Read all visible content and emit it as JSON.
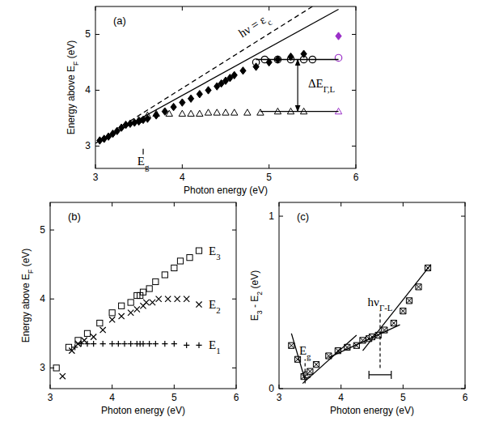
{
  "chart_data": [
    {
      "type": "scatter",
      "title": "(a)",
      "x_label": "Photon energy (eV)",
      "y_label": [
        {
          "text": "Energy above E"
        },
        {
          "text": "F",
          "sub": true
        },
        {
          "text": " (eV)"
        }
      ],
      "xlim": [
        3,
        6
      ],
      "ylim": [
        2.6,
        5.5
      ],
      "xticks": [
        3,
        4,
        5,
        6
      ],
      "yticks": [
        3,
        4,
        5
      ],
      "series": [
        {
          "type": "scatter",
          "marker": "diamond",
          "color": "#000000",
          "x": [
            3.05,
            3.1,
            3.15,
            3.2,
            3.25,
            3.3,
            3.35,
            3.4,
            3.45,
            3.5,
            3.55,
            3.6,
            3.7,
            3.8,
            3.9,
            4.0,
            4.1,
            4.2,
            4.3,
            4.4,
            4.45,
            4.5,
            4.55,
            4.6,
            4.7,
            4.85,
            5.0,
            5.1,
            5.25,
            5.4
          ],
          "values": [
            3.1,
            3.13,
            3.17,
            3.22,
            3.27,
            3.33,
            3.38,
            3.4,
            3.42,
            3.44,
            3.47,
            3.49,
            3.55,
            3.62,
            3.7,
            3.78,
            3.85,
            3.93,
            4.0,
            4.07,
            4.12,
            4.17,
            4.22,
            4.27,
            4.35,
            4.42,
            4.5,
            4.55,
            4.6,
            4.65
          ]
        },
        {
          "type": "scatter",
          "marker": "open_circle",
          "color": "#000000",
          "x": [
            4.85,
            4.95,
            5.1,
            5.25,
            5.4,
            5.5
          ],
          "values": [
            4.5,
            4.55,
            4.55,
            4.55,
            4.55,
            4.55
          ]
        },
        {
          "type": "scatter",
          "marker": "open_triangle",
          "color": "#000000",
          "x": [
            3.5,
            3.6,
            3.7,
            3.85,
            4.0,
            4.1,
            4.2,
            4.3,
            4.4,
            4.5,
            4.6,
            4.75,
            4.9,
            5.1,
            5.25,
            5.4
          ],
          "values": [
            3.47,
            3.55,
            3.58,
            3.58,
            3.58,
            3.58,
            3.58,
            3.6,
            3.6,
            3.6,
            3.6,
            3.6,
            3.6,
            3.62,
            3.62,
            3.62
          ]
        },
        {
          "type": "scatter",
          "marker": "diamond",
          "color": "#9b30c8",
          "x": [
            5.8
          ],
          "values": [
            4.97
          ]
        },
        {
          "type": "scatter",
          "marker": "open_circle",
          "color": "#9b30c8",
          "x": [
            5.8
          ],
          "values": [
            4.58
          ]
        },
        {
          "type": "scatter",
          "marker": "open_triangle",
          "color": "#9b30c8",
          "x": [
            5.8
          ],
          "values": [
            3.62
          ]
        },
        {
          "type": "line",
          "color": "#000000",
          "line_style": "solid",
          "x": [
            3.0,
            5.8
          ],
          "values": [
            3.05,
            5.45
          ]
        },
        {
          "type": "line",
          "color": "#000000",
          "line_style": "dashed",
          "x": [
            3.4,
            5.5
          ],
          "values": [
            3.45,
            5.5
          ]
        },
        {
          "type": "line",
          "color": "#000000",
          "line_style": "solid",
          "x": [
            4.85,
            5.8
          ],
          "values": [
            4.55,
            4.55
          ]
        },
        {
          "type": "line",
          "color": "#000000",
          "line_style": "solid",
          "x": [
            4.9,
            5.8
          ],
          "values": [
            3.62,
            3.62
          ]
        }
      ],
      "annotations": [
        {
          "type": "slanted_text",
          "text": [
            {
              "text": "hν = ε"
            },
            {
              "text": "c",
              "sub": true
            }
          ],
          "x": 4.85,
          "y": 5.1
        },
        {
          "type": "double_arrow",
          "x": 5.33,
          "y_from": 3.62,
          "y_to": 4.55
        },
        {
          "type": "text",
          "text": [
            {
              "text": "ΔE"
            },
            {
              "text": "Γ,L",
              "sub": true
            }
          ],
          "x": 5.45,
          "y": 4.05
        },
        {
          "type": "tick",
          "x": 3.55,
          "y_from": 2.85,
          "y_to": 2.95,
          "text": [
            {
              "text": "E"
            },
            {
              "text": "g",
              "sub": true
            }
          ]
        }
      ]
    },
    {
      "type": "scatter",
      "title": "(b)",
      "x_label": "Photon energy (eV)",
      "y_label": [
        {
          "text": "Energy above E"
        },
        {
          "text": "F",
          "sub": true
        },
        {
          "text": " (eV)"
        }
      ],
      "xlim": [
        3,
        6
      ],
      "ylim": [
        2.7,
        5.4
      ],
      "xticks": [
        3,
        4,
        5,
        6
      ],
      "yticks": [
        3,
        4,
        5
      ],
      "series": [
        {
          "type": "scatter",
          "marker": "open_square",
          "color": "#000000",
          "label": [
            {
              "text": "E"
            },
            {
              "text": "3",
              "sub": true
            }
          ],
          "x": [
            3.1,
            3.3,
            3.45,
            3.6,
            3.8,
            4.0,
            4.15,
            4.3,
            4.4,
            4.45,
            4.5,
            4.6,
            4.7,
            4.85,
            5.0,
            5.1,
            5.25,
            5.4
          ],
          "values": [
            3.0,
            3.3,
            3.4,
            3.5,
            3.65,
            3.8,
            3.9,
            3.95,
            4.05,
            4.05,
            4.1,
            4.15,
            4.25,
            4.35,
            4.45,
            4.55,
            4.6,
            4.7
          ]
        },
        {
          "type": "scatter",
          "marker": "x",
          "color": "#000000",
          "label": [
            {
              "text": "E"
            },
            {
              "text": "2",
              "sub": true
            }
          ],
          "x": [
            3.2,
            3.35,
            3.45,
            3.55,
            3.7,
            3.85,
            4.0,
            4.15,
            4.3,
            4.4,
            4.5,
            4.55,
            4.65,
            4.75,
            4.9,
            5.05,
            5.2,
            5.4
          ],
          "values": [
            2.88,
            3.25,
            3.35,
            3.4,
            3.45,
            3.55,
            3.7,
            3.75,
            3.8,
            3.85,
            3.9,
            3.95,
            3.95,
            4.0,
            4.0,
            4.0,
            4.0,
            3.92
          ]
        },
        {
          "type": "scatter",
          "marker": "plus",
          "color": "#000000",
          "label": [
            {
              "text": "E"
            },
            {
              "text": "1",
              "sub": true
            }
          ],
          "x": [
            3.4,
            3.5,
            3.6,
            3.7,
            3.85,
            4.0,
            4.1,
            4.2,
            4.3,
            4.4,
            4.45,
            4.5,
            4.6,
            4.7,
            4.85,
            5.0,
            5.2,
            5.4
          ],
          "values": [
            3.3,
            3.35,
            3.35,
            3.35,
            3.35,
            3.35,
            3.35,
            3.35,
            3.35,
            3.35,
            3.35,
            3.35,
            3.35,
            3.35,
            3.35,
            3.35,
            3.33,
            3.33
          ]
        }
      ]
    },
    {
      "type": "scatter",
      "title": "(c)",
      "x_label": "Photon energy (eV)",
      "y_label": [
        {
          "text": "E"
        },
        {
          "text": "3",
          "sub": true
        },
        {
          "text": " - E"
        },
        {
          "text": "2",
          "sub": true
        },
        {
          "text": " (eV)"
        }
      ],
      "xlim": [
        3,
        6
      ],
      "ylim": [
        0,
        1.08
      ],
      "xticks": [
        3,
        4,
        5,
        6
      ],
      "yticks": [
        0,
        1
      ],
      "series": [
        {
          "type": "scatter",
          "marker": "boxed_x",
          "color": "#000000",
          "x": [
            3.2,
            3.3,
            3.4,
            3.45,
            3.5,
            3.6,
            3.8,
            3.95,
            4.1,
            4.25,
            4.35,
            4.45,
            4.5,
            4.6,
            4.7,
            4.85,
            5.0,
            5.1,
            5.25,
            5.4
          ],
          "values": [
            0.25,
            0.17,
            0.07,
            0.08,
            0.1,
            0.14,
            0.19,
            0.22,
            0.24,
            0.25,
            0.28,
            0.29,
            0.3,
            0.31,
            0.34,
            0.38,
            0.45,
            0.51,
            0.59,
            0.7
          ]
        },
        {
          "type": "line",
          "color": "#000000",
          "line_style": "solid",
          "x": [
            3.2,
            3.42
          ],
          "values": [
            0.32,
            0.05
          ]
        },
        {
          "type": "line",
          "color": "#000000",
          "line_style": "solid",
          "x": [
            3.38,
            4.25
          ],
          "values": [
            0.03,
            0.31
          ]
        },
        {
          "type": "line",
          "color": "#000000",
          "line_style": "solid",
          "x": [
            3.8,
            4.95
          ],
          "values": [
            0.18,
            0.37
          ]
        },
        {
          "type": "line",
          "color": "#000000",
          "line_style": "solid",
          "x": [
            4.35,
            5.45
          ],
          "values": [
            0.22,
            0.72
          ]
        }
      ],
      "annotations": [
        {
          "type": "vline",
          "x": 3.42,
          "y_from": 0.03,
          "y_to": 0.17,
          "text": [
            {
              "text": "E"
            },
            {
              "text": "g",
              "sub": true
            }
          ]
        },
        {
          "type": "vline",
          "x": 4.63,
          "y_from": 0.12,
          "y_to": 0.45,
          "text": [
            {
              "text": "hν"
            },
            {
              "text": "Γ-L",
              "sub": true
            }
          ]
        },
        {
          "type": "xerror",
          "x": 4.63,
          "y": 0.08,
          "x_error": 0.18
        }
      ]
    }
  ]
}
